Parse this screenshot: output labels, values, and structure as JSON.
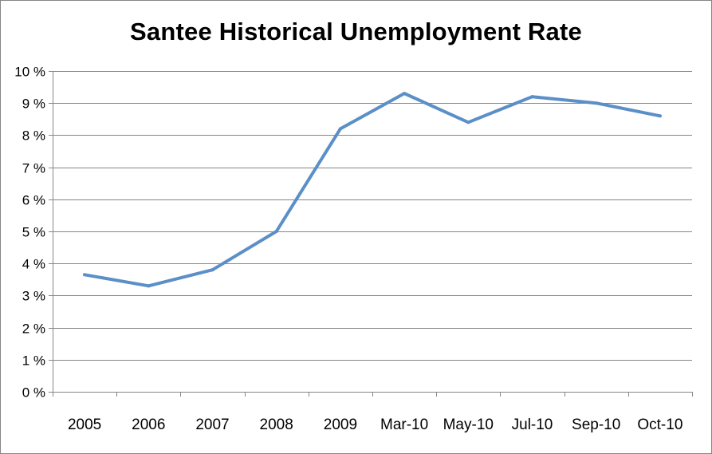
{
  "chart_data": {
    "type": "line",
    "title": "Santee Historical Unemployment Rate",
    "xlabel": "",
    "ylabel": "",
    "categories": [
      "2005",
      "2006",
      "2007",
      "2008",
      "2009",
      "Mar-10",
      "May-10",
      "Jul-10",
      "Sep-10",
      "Oct-10"
    ],
    "series": [
      {
        "values": [
          3.65,
          3.3,
          3.8,
          5.0,
          8.2,
          9.3,
          8.4,
          9.2,
          9.0,
          8.6
        ],
        "color": "#5b8fc7"
      }
    ],
    "ylim": [
      0,
      10
    ],
    "yticks": [
      0,
      1,
      2,
      3,
      4,
      5,
      6,
      7,
      8,
      9,
      10
    ],
    "ytick_labels": [
      "0 %",
      "1 %",
      "2 %",
      "3 %",
      "4 %",
      "5 %",
      "6 %",
      "7 %",
      "8 %",
      "9 %",
      "10 %"
    ],
    "grid": true,
    "legend": "none"
  }
}
